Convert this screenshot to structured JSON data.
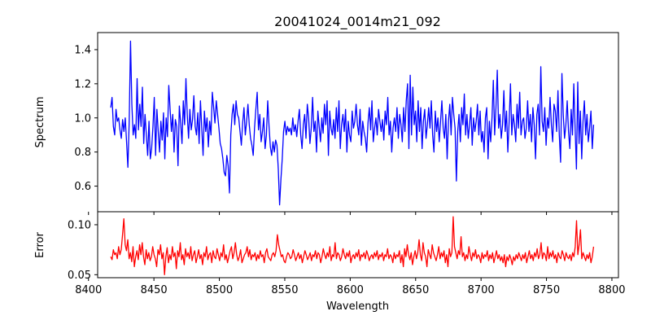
{
  "chart_data": [
    {
      "type": "line",
      "title": "20041024_0014m21_092",
      "ylabel": "Spectrum",
      "xlabel": "",
      "xlim": [
        8407,
        8805
      ],
      "ylim": [
        0.45,
        1.5
      ],
      "xticks": [
        8400,
        8450,
        8500,
        8550,
        8600,
        8650,
        8700,
        8750,
        8800
      ],
      "yticks": [
        0.6,
        0.8,
        1.0,
        1.2,
        1.4
      ],
      "ytick_labels": [
        "0.6",
        "0.8",
        "1.0",
        "1.2",
        "1.4"
      ],
      "show_xtick_labels": false,
      "color": "#0000ff",
      "x_start": 8417,
      "x_end": 8786,
      "grid": false,
      "series": [
        {
          "values": [
            1.06,
            1.12,
            0.95,
            0.9,
            1.05,
            0.98,
            1.0,
            0.93,
            0.88,
            0.99,
            0.92,
            1.0,
            0.86,
            0.71,
            0.98,
            1.45,
            1.08,
            0.9,
            0.96,
            0.88,
            1.23,
            0.93,
            1.08,
            0.95,
            1.18,
            0.85,
            1.02,
            0.9,
            0.78,
            0.98,
            0.76,
            0.82,
            0.95,
            1.12,
            0.78,
            1.05,
            0.92,
            0.8,
            0.98,
            0.87,
            1.03,
            0.76,
            1.0,
            0.89,
            1.19,
            1.05,
            0.92,
            1.02,
            0.8,
            0.99,
            0.95,
            0.72,
            1.07,
            0.97,
            0.85,
            1.1,
            0.96,
            1.23,
            1.02,
            0.88,
            1.05,
            0.93,
            0.99,
            1.13,
            0.95,
            0.9,
            1.03,
            0.85,
            1.1,
            0.94,
            0.78,
            1.04,
            0.92,
            1.0,
            0.83,
            0.98,
            0.9,
            1.15,
            1.06,
            0.97,
            1.1,
            1.02,
            0.94,
            0.85,
            0.82,
            0.76,
            0.68,
            0.66,
            0.78,
            0.72,
            0.56,
            0.9,
            1.02,
            1.08,
            0.96,
            1.1,
            1.02,
            1.0,
            0.92,
            0.84,
            0.97,
            1.06,
            0.9,
            0.98,
            1.08,
            0.96,
            0.88,
            0.84,
            0.78,
            0.94,
            1.05,
            1.15,
            0.93,
            1.02,
            0.86,
            0.92,
            1.0,
            0.82,
            0.9,
            1.1,
            0.95,
            0.83,
            0.78,
            0.86,
            0.8,
            0.87,
            0.84,
            0.7,
            0.49,
            0.64,
            0.76,
            0.92,
            0.98,
            0.9,
            0.95,
            0.92,
            0.94,
            0.9,
            1.0,
            0.92,
            0.96,
            0.89,
            0.98,
            1.05,
            0.9,
            0.82,
            0.96,
            1.02,
            0.88,
            1.08,
            1.0,
            0.85,
            0.94,
            1.12,
            0.92,
            0.98,
            0.8,
            1.04,
            0.95,
            0.86,
            1.0,
            0.91,
            1.08,
            0.96,
            1.1,
            0.78,
            1.04,
            0.94,
            0.9,
            0.99,
            0.88,
            1.06,
            0.92,
            1.1,
            0.82,
            0.96,
            1.02,
            0.92,
            1.05,
            0.8,
            0.98,
            0.9,
            0.86,
            1.04,
            0.94,
            0.98,
            1.08,
            0.96,
            0.9,
            1.05,
            0.84,
            0.98,
            0.92,
            0.88,
            0.8,
            0.97,
            1.06,
            0.93,
            1.1,
            0.86,
            0.94,
            1.0,
            0.9,
            1.05,
            0.98,
            0.92,
            0.99,
            0.87,
            1.04,
            0.96,
            1.12,
            0.9,
            0.98,
            0.8,
            0.94,
            1.0,
            0.92,
            1.06,
            0.88,
            1.02,
            0.96,
            0.86,
            1.06,
            0.92,
            1.1,
            1.2,
            0.82,
            1.25,
            0.9,
            1.18,
            0.96,
            1.04,
            0.86,
            1.1,
            0.92,
            1.06,
            0.82,
            0.98,
            1.05,
            0.88,
            0.96,
            1.06,
            0.94,
            1.1,
            0.9,
            0.8,
            1.04,
            0.92,
            1.0,
            0.86,
            0.98,
            1.1,
            0.94,
            0.88,
            1.02,
            0.76,
            0.98,
            1.08,
            0.9,
            1.12,
            1.02,
            0.94,
            0.63,
            0.92,
            1.02,
            0.86,
            1.06,
            0.96,
            1.14,
            0.9,
            1.02,
            0.88,
            0.96,
            1.06,
            0.84,
            1.0,
            0.92,
            0.98,
            1.08,
            0.9,
            1.04,
            0.86,
            0.92,
            0.8,
            1.0,
            1.06,
            0.76,
            0.98,
            0.86,
            1.0,
            1.22,
            0.9,
            1.06,
            1.28,
            0.94,
            1.02,
            0.88,
            0.96,
            1.16,
            0.92,
            1.04,
            0.8,
            0.98,
            1.2,
            0.9,
            1.02,
            0.96,
            0.86,
            1.08,
            0.94,
            1.15,
            0.9,
            0.98,
            1.0,
            0.88,
            0.94,
            1.1,
            0.92,
            1.02,
            0.86,
            1.06,
            0.96,
            0.76,
            1.02,
            1.08,
            0.9,
            1.3,
            0.98,
            0.92,
            1.06,
            0.84,
            1.0,
            0.94,
            1.12,
            0.96,
            0.86,
            1.08,
            1.04,
            0.92,
            1.16,
            0.9,
            0.74,
            1.26,
            1.02,
            0.88,
            0.96,
            1.1,
            0.92,
            0.82,
            1.05,
            0.9,
            1.2,
            0.94,
            0.7,
            1.21,
            0.85,
            1.04,
            0.76,
            0.98,
            1.1,
            0.9,
            1.02,
            0.86,
            0.94,
            1.04,
            0.82,
            0.96
          ]
        }
      ]
    },
    {
      "type": "line",
      "title": "",
      "ylabel": "Error",
      "xlabel": "Wavelength",
      "xlim": [
        8407,
        8805
      ],
      "ylim": [
        0.047,
        0.113
      ],
      "xticks": [
        8400,
        8450,
        8500,
        8550,
        8600,
        8650,
        8700,
        8750,
        8800
      ],
      "xtick_labels": [
        "8400",
        "8450",
        "8500",
        "8550",
        "8600",
        "8650",
        "8700",
        "8750",
        "8800"
      ],
      "yticks": [
        0.05,
        0.1
      ],
      "ytick_labels": [
        "0.05",
        "0.10"
      ],
      "show_xtick_labels": true,
      "color": "#ff0000",
      "x_start": 8417,
      "x_end": 8786,
      "grid": false,
      "series": [
        {
          "values": [
            0.068,
            0.065,
            0.075,
            0.07,
            0.072,
            0.066,
            0.078,
            0.07,
            0.075,
            0.09,
            0.106,
            0.08,
            0.074,
            0.085,
            0.066,
            0.072,
            0.063,
            0.078,
            0.058,
            0.068,
            0.074,
            0.065,
            0.08,
            0.07,
            0.082,
            0.068,
            0.06,
            0.075,
            0.066,
            0.072,
            0.064,
            0.068,
            0.078,
            0.07,
            0.066,
            0.058,
            0.075,
            0.07,
            0.08,
            0.066,
            0.072,
            0.05,
            0.068,
            0.077,
            0.062,
            0.07,
            0.065,
            0.078,
            0.068,
            0.072,
            0.056,
            0.074,
            0.068,
            0.082,
            0.065,
            0.07,
            0.06,
            0.076,
            0.068,
            0.072,
            0.066,
            0.078,
            0.064,
            0.07,
            0.074,
            0.062,
            0.068,
            0.075,
            0.066,
            0.07,
            0.06,
            0.072,
            0.068,
            0.078,
            0.065,
            0.07,
            0.072,
            0.062,
            0.074,
            0.068,
            0.066,
            0.076,
            0.07,
            0.064,
            0.072,
            0.068,
            0.08,
            0.065,
            0.07,
            0.062,
            0.068,
            0.074,
            0.078,
            0.066,
            0.072,
            0.082,
            0.07,
            0.064,
            0.068,
            0.075,
            0.062,
            0.066,
            0.07,
            0.072,
            0.078,
            0.068,
            0.075,
            0.065,
            0.07,
            0.068,
            0.072,
            0.064,
            0.07,
            0.066,
            0.074,
            0.068,
            0.07,
            0.062,
            0.072,
            0.076,
            0.068,
            0.066,
            0.064,
            0.07,
            0.072,
            0.068,
            0.074,
            0.09,
            0.08,
            0.074,
            0.068,
            0.07,
            0.064,
            0.062,
            0.068,
            0.072,
            0.07,
            0.066,
            0.068,
            0.075,
            0.07,
            0.064,
            0.068,
            0.072,
            0.066,
            0.07,
            0.062,
            0.068,
            0.074,
            0.07,
            0.065,
            0.068,
            0.072,
            0.064,
            0.07,
            0.068,
            0.074,
            0.066,
            0.072,
            0.07,
            0.062,
            0.068,
            0.076,
            0.07,
            0.066,
            0.072,
            0.068,
            0.078,
            0.064,
            0.07,
            0.068,
            0.082,
            0.066,
            0.072,
            0.07,
            0.064,
            0.068,
            0.076,
            0.07,
            0.066,
            0.072,
            0.068,
            0.074,
            0.062,
            0.068,
            0.07,
            0.066,
            0.072,
            0.068,
            0.075,
            0.064,
            0.07,
            0.068,
            0.072,
            0.066,
            0.074,
            0.07,
            0.064,
            0.068,
            0.07,
            0.066,
            0.072,
            0.068,
            0.074,
            0.065,
            0.07,
            0.068,
            0.072,
            0.064,
            0.07,
            0.068,
            0.076,
            0.066,
            0.07,
            0.068,
            0.062,
            0.072,
            0.066,
            0.07,
            0.068,
            0.074,
            0.062,
            0.07,
            0.058,
            0.076,
            0.068,
            0.08,
            0.07,
            0.065,
            0.072,
            0.06,
            0.068,
            0.074,
            0.066,
            0.072,
            0.085,
            0.07,
            0.064,
            0.082,
            0.072,
            0.068,
            0.058,
            0.075,
            0.07,
            0.066,
            0.08,
            0.072,
            0.068,
            0.064,
            0.07,
            0.078,
            0.066,
            0.072,
            0.068,
            0.074,
            0.062,
            0.07,
            0.058,
            0.076,
            0.068,
            0.072,
            0.108,
            0.078,
            0.072,
            0.066,
            0.074,
            0.07,
            0.088,
            0.068,
            0.072,
            0.064,
            0.07,
            0.066,
            0.078,
            0.07,
            0.064,
            0.072,
            0.068,
            0.075,
            0.066,
            0.07,
            0.068,
            0.062,
            0.072,
            0.066,
            0.07,
            0.068,
            0.074,
            0.064,
            0.07,
            0.066,
            0.072,
            0.062,
            0.068,
            0.074,
            0.066,
            0.07,
            0.064,
            0.068,
            0.062,
            0.07,
            0.058,
            0.068,
            0.064,
            0.07,
            0.066,
            0.06,
            0.068,
            0.064,
            0.07,
            0.066,
            0.072,
            0.068,
            0.064,
            0.07,
            0.066,
            0.072,
            0.062,
            0.068,
            0.074,
            0.066,
            0.07,
            0.064,
            0.072,
            0.068,
            0.076,
            0.066,
            0.07,
            0.082,
            0.066,
            0.072,
            0.07,
            0.064,
            0.078,
            0.066,
            0.072,
            0.068,
            0.074,
            0.066,
            0.07,
            0.062,
            0.072,
            0.068,
            0.066,
            0.074,
            0.07,
            0.064,
            0.072,
            0.068,
            0.066,
            0.07,
            0.064,
            0.072,
            0.068,
            0.078,
            0.104,
            0.07,
            0.08,
            0.095,
            0.066,
            0.072,
            0.068,
            0.064,
            0.07,
            0.066,
            0.072,
            0.062,
            0.068,
            0.078
          ]
        }
      ]
    }
  ]
}
